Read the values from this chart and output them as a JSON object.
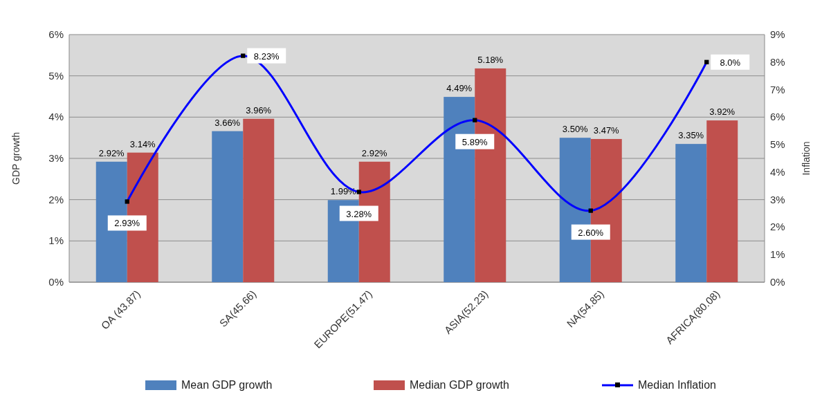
{
  "chart_data": {
    "type": "bar",
    "categories": [
      "OA (43.87)",
      "SA(45.66)",
      "EUROPE(51.47)",
      "ASIA(52.23)",
      "NA(54.85)",
      "AFRICA(80.08)"
    ],
    "ylabel": "GDP growth",
    "y2label": "Inflation",
    "ylim": [
      0,
      6
    ],
    "yticks": [
      {
        "value": 0,
        "label": "0%"
      },
      {
        "value": 1,
        "label": "1%"
      },
      {
        "value": 2,
        "label": "2%"
      },
      {
        "value": 3,
        "label": "3%"
      },
      {
        "value": 4,
        "label": "4%"
      },
      {
        "value": 5,
        "label": "5%"
      },
      {
        "value": 6,
        "label": "6%"
      }
    ],
    "y2lim": [
      0,
      9
    ],
    "y2ticks": [
      {
        "value": 0,
        "label": "0%"
      },
      {
        "value": 1,
        "label": "1%"
      },
      {
        "value": 2,
        "label": "2%"
      },
      {
        "value": 3,
        "label": "3%"
      },
      {
        "value": 4,
        "label": "4%"
      },
      {
        "value": 5,
        "label": "5%"
      },
      {
        "value": 6,
        "label": "6%"
      },
      {
        "value": 7,
        "label": "7%"
      },
      {
        "value": 8,
        "label": "8%"
      },
      {
        "value": 9,
        "label": "9%"
      }
    ],
    "grid": "y",
    "legend": "bottom",
    "series": [
      {
        "name": "Mean GDP growth",
        "color": "#4f81bd",
        "values": [
          2.92,
          3.66,
          1.99,
          4.49,
          3.5,
          3.35
        ],
        "value_labels": [
          "2.92%",
          "3.66%",
          "1.99%",
          "4.49%",
          "3.50%",
          "3.35%"
        ]
      },
      {
        "name": "Median GDP growth",
        "color": "#c0504d",
        "values": [
          3.14,
          3.96,
          2.92,
          5.18,
          3.47,
          3.92
        ],
        "value_labels": [
          "3.14%",
          "3.96%",
          "2.92%",
          "5.18%",
          "3.47%",
          "3.92%"
        ]
      },
      {
        "name": "Median Inflation",
        "type": "line",
        "axis": "y2",
        "color": "#0000ff",
        "marker": "square",
        "values": [
          2.93,
          8.23,
          3.28,
          5.89,
          2.6,
          8.0
        ],
        "value_labels": [
          "2.93%",
          "8.23%",
          "3.28%",
          "5.89%",
          "2.60%",
          "8.0%"
        ]
      }
    ]
  }
}
